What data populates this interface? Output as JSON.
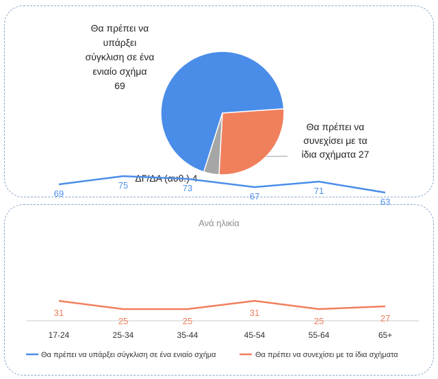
{
  "colors": {
    "series1": "#4a8de8",
    "series2": "#f07f5c",
    "other": "#a6a6a6",
    "pie_label": "#222222",
    "title": "#8c8c8c",
    "axis": "#333333"
  },
  "chart_data": [
    {
      "type": "pie",
      "slices": [
        {
          "label": "Θα πρέπει να υπάρξει σύγκλιση σε ένα ενιαίο σχήμα",
          "value": 69,
          "color": "#4a8de8",
          "label_lines": [
            "Θα πρέπει να",
            "υπάρξει",
            "σύγκλιση σε ένα",
            "ενιαίο σχήμα",
            "69"
          ]
        },
        {
          "label": "Θα πρέπει να συνεχίσει με τα ίδια σχήματα",
          "value": 27,
          "color": "#f07f5c",
          "label_lines": [
            "Θα πρέπει να",
            "συνεχίσει με τα",
            "ίδια σχήματα 27"
          ]
        },
        {
          "label": "ΔΓ/ΔΑ (αυθ.)",
          "value": 4,
          "color": "#a6a6a6",
          "label_lines": [
            "ΔΓ/ΔΑ (αυθ.) 4"
          ]
        }
      ]
    },
    {
      "type": "line",
      "title": "Ανά ηλικία",
      "categories": [
        "17-24",
        "25-34",
        "35-44",
        "45-54",
        "55-64",
        "65+"
      ],
      "series": [
        {
          "name": "Θα πρέπει να υπάρξει σύγκλιση σε ένα ενιαίο σχήμα",
          "values": [
            69,
            75,
            73,
            67,
            71,
            63
          ],
          "color": "#4a8de8"
        },
        {
          "name": "Θα πρέπει να συνεχίσει με τα ίδια σχήματα",
          "values": [
            31,
            25,
            25,
            31,
            25,
            27
          ],
          "color": "#f07f5c"
        }
      ],
      "legend": "bottom",
      "grid": false
    }
  ]
}
